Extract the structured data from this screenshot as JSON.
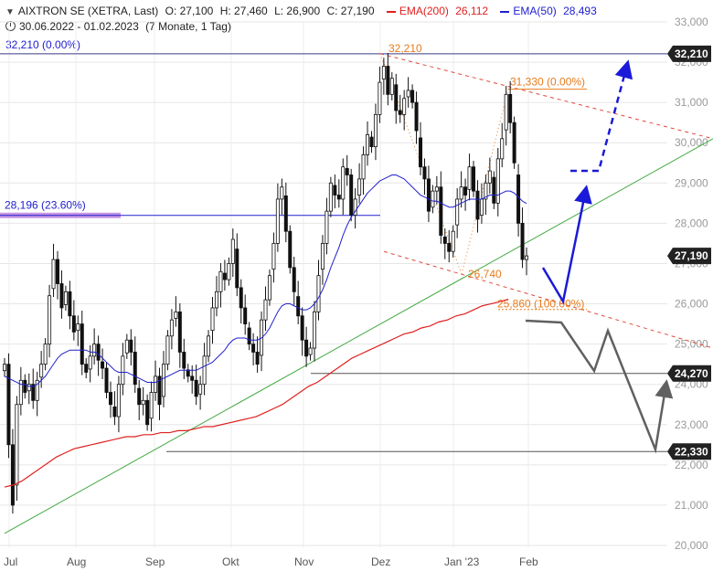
{
  "header": {
    "title": "AIXTRON SE (XETRA, Last)",
    "open": "O: 27,100",
    "high": "H: 27,460",
    "low": "L: 26,900",
    "close": "C: 27,190",
    "ema200_label": "EMA(200)",
    "ema200_value": "26,112",
    "ema50_label": "EMA(50)",
    "ema50_value": "28,493",
    "period": "30.06.2022 - 01.02.2023",
    "period_detail": "(7 Monate, 1 Tag)",
    "ref_label": "32,210 (0.00%)"
  },
  "colors": {
    "ema200": "#e02020",
    "ema50": "#2020d0",
    "trendline": "#44aa44",
    "channel": "#e04a3a",
    "fib_text": "#e87b1a",
    "scenario_up": "#1a1ad8",
    "scenario_down": "#606060",
    "fib_band": "#c28be0",
    "price_tag": "#222222"
  },
  "chart_data": {
    "type": "candlestick",
    "instrument": "AIXTRON SE (XETRA, Last)",
    "ylim": [
      20000,
      33000
    ],
    "y_ticks": [
      20000,
      21000,
      22000,
      23000,
      24000,
      25000,
      26000,
      27000,
      28000,
      29000,
      30000,
      31000,
      32000,
      33000
    ],
    "y_tick_labels": [
      "20,000",
      "21,000",
      "22,000",
      "23,000",
      "24,000",
      "25,000",
      "26,000",
      "27,000",
      "28,000",
      "29,000",
      "30,000",
      "31,000",
      "32,000",
      "33,000"
    ],
    "x_ticks": [
      "Jul",
      "Aug",
      "Sep",
      "Okt",
      "Nov",
      "Dez",
      "Jan '23",
      "Feb"
    ],
    "grid": true,
    "closes": [
      24500,
      22500,
      21000,
      23500,
      24100,
      23800,
      24000,
      23600,
      24100,
      24500,
      25000,
      26200,
      27100,
      26500,
      25900,
      26300,
      25700,
      25300,
      25500,
      24500,
      24300,
      24700,
      25000,
      24600,
      24400,
      23800,
      23500,
      23200,
      24000,
      24700,
      25100,
      24800,
      24000,
      23500,
      23600,
      23000,
      23800,
      24200,
      23500,
      24500,
      25200,
      25600,
      25800,
      24800,
      24400,
      24200,
      24100,
      23700,
      24000,
      24700,
      25200,
      25900,
      26300,
      26800,
      26600,
      27000,
      27600,
      26400,
      25900,
      25500,
      25000,
      24800,
      24500,
      25600,
      26100,
      26700,
      27500,
      28600,
      28900,
      27800,
      26900,
      26300,
      25700,
      25100,
      24700,
      24900,
      25800,
      26700,
      27500,
      28300,
      29000,
      28700,
      28600,
      29400,
      29200,
      28200,
      28600,
      29100,
      29700,
      30200,
      29900,
      30700,
      31500,
      31900,
      31200,
      31600,
      30800,
      30700,
      31100,
      31300,
      31000,
      30300,
      29400,
      29100,
      28300,
      28800,
      28900,
      27700,
      27500,
      27300,
      27800,
      28600,
      28900,
      28700,
      29400,
      28800,
      28100,
      28600,
      29000,
      29300,
      28500,
      29600,
      30100,
      31200,
      30500,
      29500,
      28000,
      27100,
      27190
    ],
    "ema50": [
      24200,
      24150,
      24100,
      24050,
      24000,
      24000,
      23950,
      23950,
      24000,
      24100,
      24200,
      24350,
      24500,
      24650,
      24750,
      24800,
      24850,
      24850,
      24850,
      24850,
      24850,
      24800,
      24800,
      24750,
      24650,
      24550,
      24450,
      24350,
      24300,
      24300,
      24300,
      24250,
      24200,
      24150,
      24100,
      24050,
      24050,
      24050,
      24100,
      24150,
      24200,
      24250,
      24300,
      24350,
      24350,
      24350,
      24350,
      24350,
      24400,
      24450,
      24500,
      24550,
      24650,
      24750,
      24850,
      25000,
      25100,
      25150,
      25150,
      25150,
      25100,
      25100,
      25100,
      25150,
      25250,
      25400,
      25600,
      25800,
      25950,
      26000,
      26000,
      25950,
      25900,
      25850,
      25850,
      25900,
      26000,
      26150,
      26350,
      26600,
      26900,
      27150,
      27400,
      27700,
      27950,
      28150,
      28300,
      28450,
      28600,
      28750,
      28850,
      28950,
      29050,
      29100,
      29150,
      29200,
      29200,
      29150,
      29100,
      29000,
      28900,
      28800,
      28700,
      28650,
      28600,
      28550,
      28550,
      28500,
      28450,
      28400,
      28400,
      28450,
      28500,
      28550,
      28600,
      28600,
      28600,
      28600,
      28650,
      28700,
      28700,
      28700,
      28750,
      28800,
      28800,
      28750,
      28650,
      28550,
      28493
    ],
    "ema200": [
      21450,
      21500,
      21600,
      21750,
      21900,
      22050,
      22200,
      22300,
      22400,
      22450,
      22500,
      22550,
      22600,
      22650,
      22700,
      22700,
      22750,
      22750,
      22800,
      22800,
      22850,
      22850,
      22900,
      22950,
      22950,
      23000,
      23050,
      23100,
      23150,
      23200,
      23300,
      23400,
      23500,
      23650,
      23800,
      23950,
      24050,
      24200,
      24350,
      24500,
      24650,
      24750,
      24850,
      24950,
      25050,
      25150,
      25250,
      25300,
      25400,
      25450,
      25550,
      25600,
      25700,
      25750,
      25850,
      25950,
      26000,
      26050,
      26112
    ],
    "annotations": [
      "32,210",
      "31,330 (0.00%)",
      "28,196 (23.60%)",
      "26,740",
      "25,860 (100.00%)"
    ],
    "price_tags": [
      "32,210",
      "27,190",
      "24,270",
      "22,330"
    ]
  }
}
